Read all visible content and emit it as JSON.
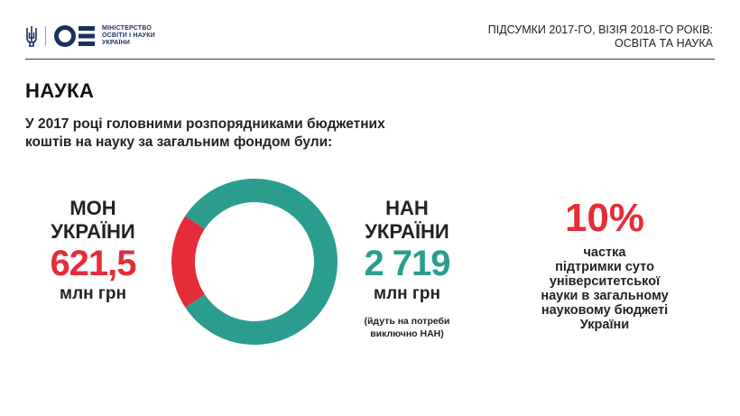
{
  "header": {
    "logo": {
      "emblem_icon": "trident-icon",
      "mark_icon": "ministry-oe-mark-icon",
      "lines": [
        "МІНІСТЕРСТВО",
        "ОСВІТИ І НАУКИ",
        "УКРАЇНИ"
      ]
    },
    "title_line1": "ПІДСУМКИ 2017-ГО, ВІЗІЯ 2018-ГО РОКІВ:",
    "title_line2": "ОСВІТА ТА НАУКА"
  },
  "section_title": "НАУКА",
  "subtitle_line1": "У 2017 році головними розпорядниками бюджетних",
  "subtitle_line2": "коштів на науку за загальним фондом були:",
  "chart_data": {
    "type": "pie",
    "style": "donut",
    "title": "",
    "categories": [
      "МОН УКРАЇНИ",
      "НАН УКРАЇНИ"
    ],
    "values": [
      621.5,
      2719
    ],
    "unit": "млн грн",
    "colors": [
      "#e52d3a",
      "#2a9d8f"
    ]
  },
  "stats": {
    "mon": {
      "name_line1": "МОН",
      "name_line2": "УКРАЇНИ",
      "value": "621,5",
      "unit": "млн грн",
      "color": "#e52d3a"
    },
    "nan": {
      "name_line1": "НАН",
      "name_line2": "УКРАЇНИ",
      "value": "2 719",
      "unit": "млн грн",
      "color": "#2a9d8f",
      "note_line1": "(йдуть на потреби",
      "note_line2": "виключно НАН)"
    }
  },
  "share": {
    "value": "10%",
    "text_lines": [
      "частка",
      "підтримки суто",
      "університетської",
      "науки в загальному",
      "науковому бюджеті",
      "України"
    ]
  }
}
